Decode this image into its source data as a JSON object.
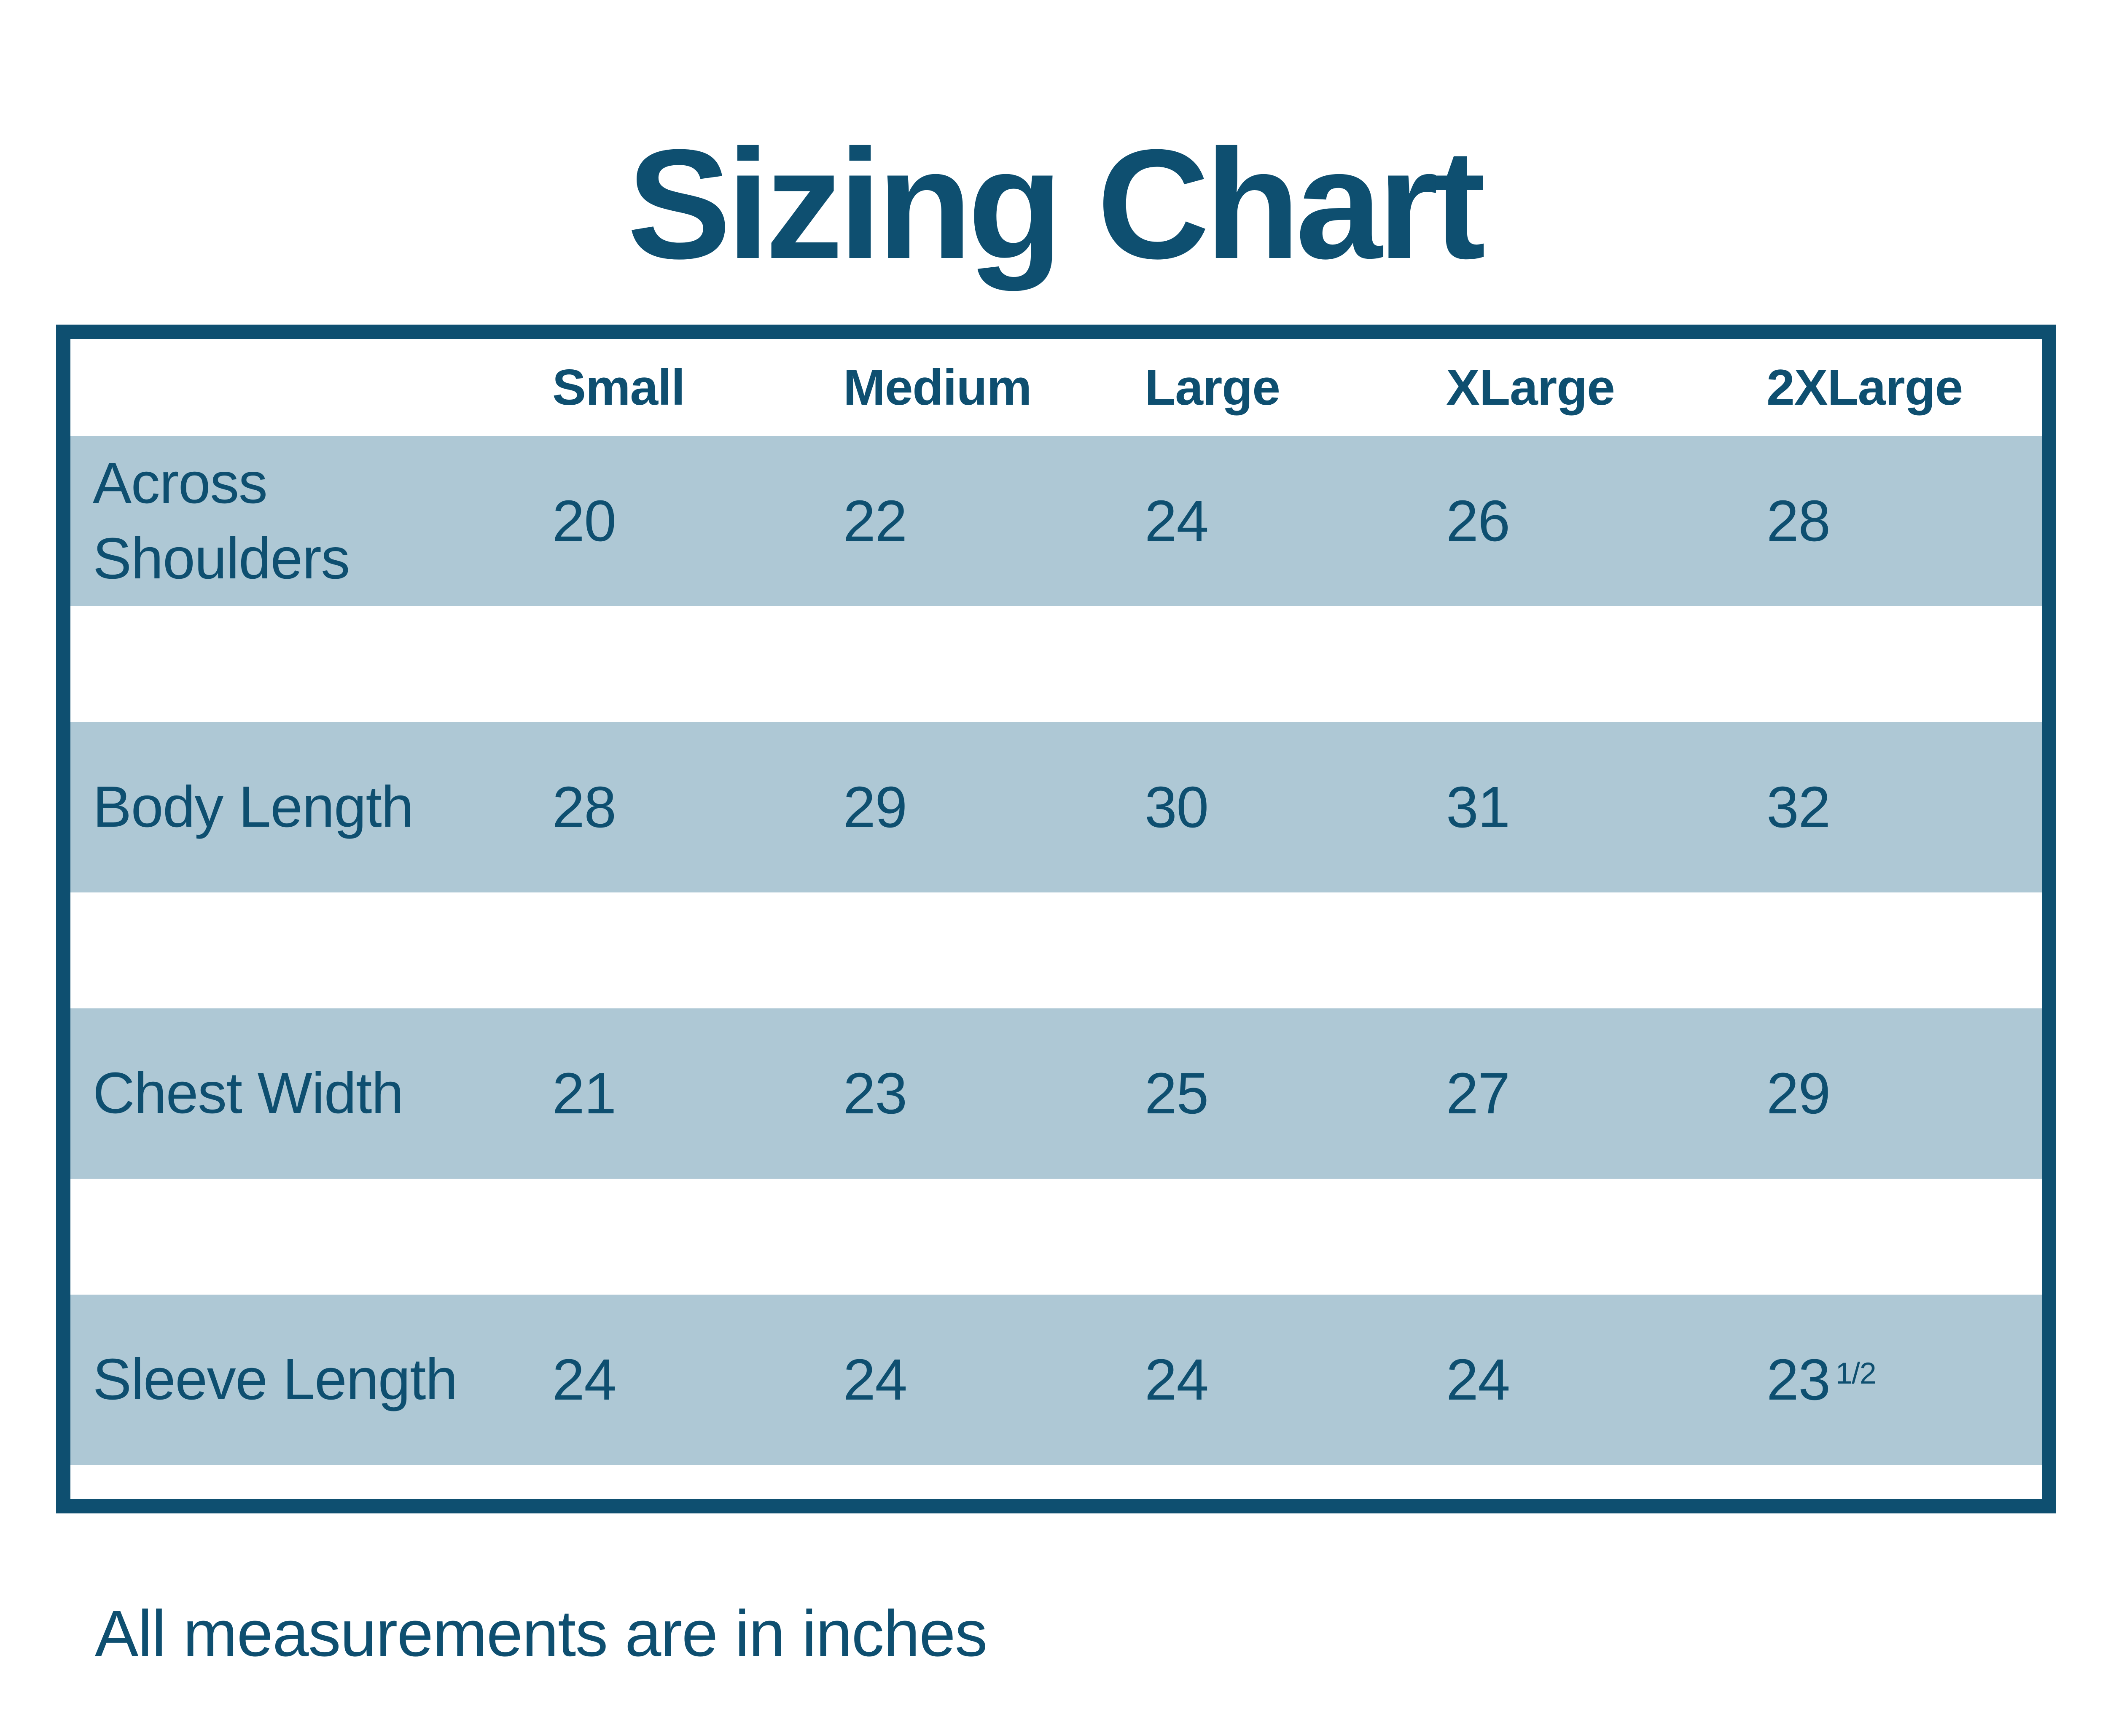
{
  "colors": {
    "dark_blue": "#0e4f70",
    "stripe_blue": "#aec8d5",
    "background": "#ffffff"
  },
  "chart_data": {
    "type": "table",
    "title": "Sizing Chart",
    "columns": [
      "Small",
      "Medium",
      "Large",
      "XLarge",
      "2XLarge"
    ],
    "rows": [
      {
        "label": "Across Shoulders",
        "values": [
          "20",
          "22",
          "24",
          "26",
          "28"
        ]
      },
      {
        "label": "Body Length",
        "values": [
          "28",
          "29",
          "30",
          "31",
          "32"
        ]
      },
      {
        "label": "Chest Width",
        "values": [
          "21",
          "23",
          "25",
          "27",
          "29"
        ]
      },
      {
        "label": "Sleeve Length",
        "values": [
          "24",
          "24",
          "24",
          "24",
          "23 1/2"
        ]
      }
    ],
    "note": "All measurements are in inches",
    "layout": {
      "grid": "off",
      "stripe_style": "alternating horizontal bands",
      "units": "inches"
    }
  },
  "display": {
    "sleeve_last_base": "23",
    "sleeve_last_fraction": "1/2"
  }
}
